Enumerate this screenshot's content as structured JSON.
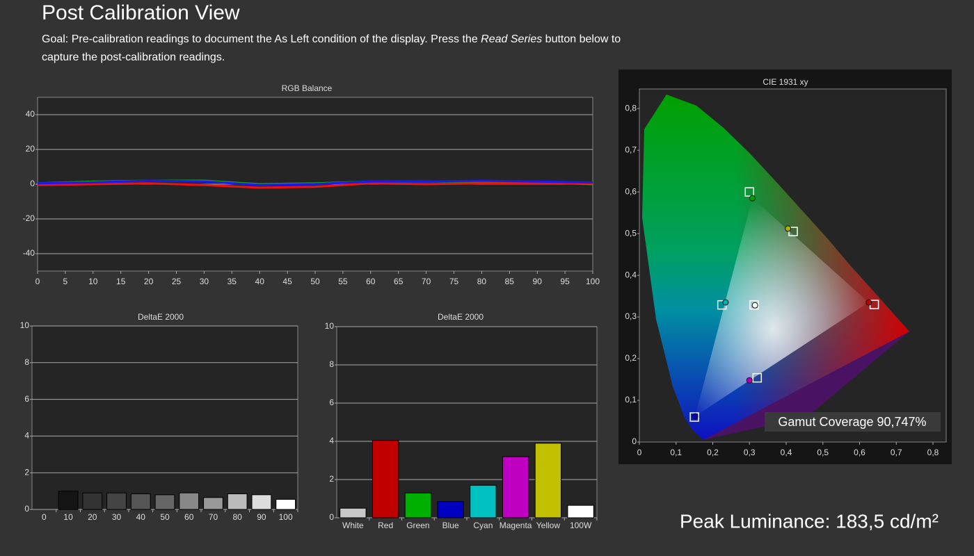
{
  "header": {
    "title": "Post Calibration View",
    "goal": [
      "Goal: Pre-calibration readings to document the As Left condition of the display. Press the ",
      "Read Series",
      " button below to capture the post-calibration readings."
    ]
  },
  "chart_data": [
    {
      "type": "line",
      "title": "RGB Balance",
      "x": [
        0,
        10,
        20,
        30,
        40,
        50,
        60,
        70,
        80,
        90,
        100
      ],
      "xlim": [
        0,
        100
      ],
      "xticks": [
        0,
        5,
        10,
        15,
        20,
        25,
        30,
        35,
        40,
        45,
        50,
        55,
        60,
        65,
        70,
        75,
        80,
        85,
        90,
        95,
        100
      ],
      "ylim": [
        -50,
        50
      ],
      "yticks": [
        -40,
        -20,
        0,
        20,
        40
      ],
      "grid": true,
      "series": [
        {
          "color": "#1a9a1a",
          "values": [
            0.5,
            1.5,
            2,
            2,
            0,
            0.5,
            1.5,
            1.5,
            1.5,
            1,
            0
          ]
        },
        {
          "color": "#ee1111",
          "values": [
            -0.5,
            0,
            0.5,
            -0.5,
            -2,
            -1.5,
            0.5,
            0,
            0.5,
            0.5,
            0.5
          ]
        },
        {
          "color": "#1a1aee",
          "values": [
            0.5,
            1,
            2,
            1.5,
            -0.5,
            0,
            1.5,
            1.5,
            2,
            1.5,
            1
          ]
        }
      ]
    },
    {
      "type": "bar",
      "title": "DeltaE 2000",
      "categories": [
        "0",
        "10",
        "20",
        "30",
        "40",
        "50",
        "60",
        "70",
        "80",
        "90",
        "100"
      ],
      "values": [
        null,
        1.0,
        0.9,
        0.9,
        0.85,
        0.8,
        0.9,
        0.65,
        0.85,
        0.8,
        0.55
      ],
      "colors": [
        "#000000",
        "#151515",
        "#333333",
        "#444444",
        "#555555",
        "#666666",
        "#888888",
        "#999999",
        "#bbbbbb",
        "#dddddd",
        "#ffffff"
      ],
      "ylim": [
        0,
        10
      ],
      "yticks": [
        0,
        2,
        4,
        6,
        8,
        10
      ],
      "grid": true
    },
    {
      "type": "bar",
      "title": "DeltaE 2000",
      "categories": [
        "White",
        "Red",
        "Green",
        "Blue",
        "Cyan",
        "Magenta",
        "Yellow",
        "100W"
      ],
      "values": [
        0.5,
        4.05,
        1.3,
        0.85,
        1.7,
        3.2,
        3.9,
        0.65
      ],
      "colors": [
        "#c8c8c8",
        "#c00000",
        "#00b000",
        "#0000c0",
        "#00c0c0",
        "#c000c0",
        "#c0c000",
        "#ffffff"
      ],
      "ylim": [
        0,
        10
      ],
      "yticks": [
        0,
        2,
        4,
        6,
        8,
        10
      ],
      "grid": true
    },
    {
      "type": "scatter",
      "title": "CIE 1931 xy",
      "xlim": [
        0,
        0.836
      ],
      "ylim": [
        0,
        0.847
      ],
      "xticks": [
        0,
        {
          "value": 0.1,
          "label": "0,1"
        },
        {
          "value": 0.2,
          "label": "0,2"
        },
        {
          "value": 0.3,
          "label": "0,3"
        },
        {
          "value": 0.4,
          "label": "0,4"
        },
        {
          "value": 0.5,
          "label": "0,5"
        },
        {
          "value": 0.6,
          "label": "0,6"
        },
        {
          "value": 0.7,
          "label": "0,7"
        },
        {
          "value": 0.8,
          "label": "0,8"
        }
      ],
      "yticks": [
        0,
        {
          "value": 0.1,
          "label": "0,1"
        },
        {
          "value": 0.2,
          "label": "0,2"
        },
        {
          "value": 0.3,
          "label": "0,3"
        },
        {
          "value": 0.4,
          "label": "0,4"
        },
        {
          "value": 0.5,
          "label": "0,5"
        },
        {
          "value": 0.6,
          "label": "0,6"
        },
        {
          "value": 0.7,
          "label": "0,7"
        },
        {
          "value": 0.8,
          "label": "0,8"
        }
      ],
      "series": [
        {
          "marker": "square",
          "color": "#ffffff",
          "x": [
            0.64,
            0.3,
            0.15,
            0.3127,
            0.225,
            0.321,
            0.419
          ],
          "y": [
            0.33,
            0.6,
            0.06,
            0.329,
            0.329,
            0.154,
            0.505
          ]
        },
        {
          "marker": "circle",
          "colors": [
            "#c00000",
            "#00a000",
            "#0000c0",
            "#ffffff",
            "#00b0b0",
            "#b000b0",
            "#b0b000"
          ],
          "x": [
            0.625,
            0.308,
            0.152,
            0.315,
            0.235,
            0.3,
            0.405
          ],
          "y": [
            0.335,
            0.585,
            0.062,
            0.328,
            0.335,
            0.148,
            0.512
          ]
        }
      ],
      "annotation": "Gamut Coverage 90,747%"
    }
  ],
  "footer": {
    "peak_luminance": "Peak Luminance: 183,5 cd/m²"
  }
}
